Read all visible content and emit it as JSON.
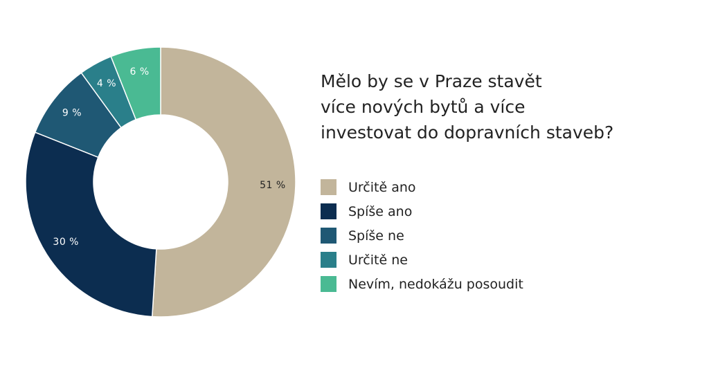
{
  "chart_data": {
    "type": "pie",
    "title_lines": [
      "Mělo by se v Praze stavět",
      "více nových bytů a více",
      "investovat do dopravních staveb?"
    ],
    "categories": [
      "Určitě ano",
      "Spíše ano",
      "Spíše ne",
      "Určitě ne",
      "Nevím, nedokážu posoudit"
    ],
    "values": [
      51,
      30,
      9,
      4,
      6
    ],
    "value_labels": [
      "51 %",
      "30 %",
      "9 %",
      "4 %",
      "6 %"
    ],
    "colors": [
      "#c2b59b",
      "#0c2d50",
      "#1f5874",
      "#2a7f8a",
      "#4aba93"
    ],
    "label_colors": [
      "#222222",
      "#ffffff",
      "#ffffff",
      "#ffffff",
      "#ffffff"
    ],
    "legend_position": "right"
  }
}
